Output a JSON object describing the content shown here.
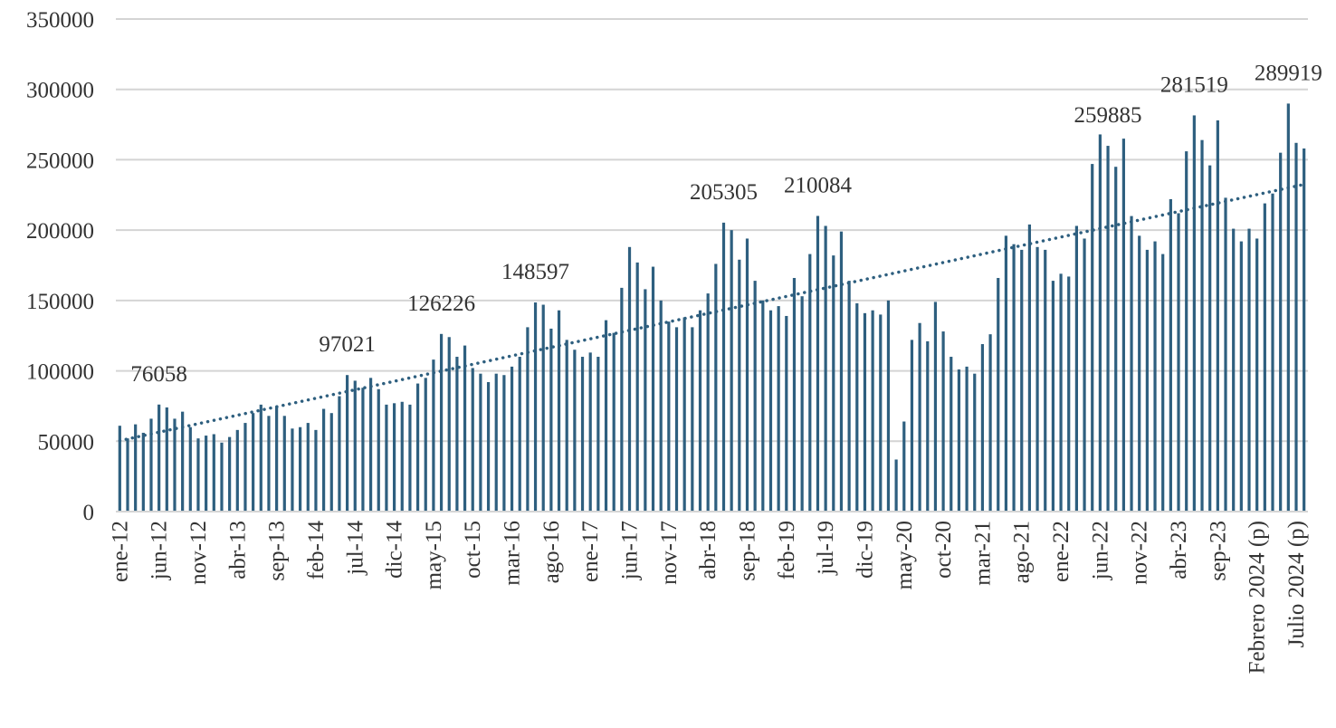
{
  "chart_data": {
    "type": "bar",
    "color": "#2e5f7f",
    "grid": true,
    "trendline": "linear",
    "ylim": [
      0,
      350000
    ],
    "yticks": [
      0,
      50000,
      100000,
      150000,
      200000,
      250000,
      300000,
      350000
    ],
    "categories": [
      "ene-12",
      null,
      null,
      null,
      null,
      "jun-12",
      null,
      null,
      null,
      null,
      "nov-12",
      null,
      null,
      null,
      null,
      "abr-13",
      null,
      null,
      null,
      null,
      "sep-13",
      null,
      null,
      null,
      null,
      "feb-14",
      null,
      null,
      null,
      null,
      "jul-14",
      null,
      null,
      null,
      null,
      "dic-14",
      null,
      null,
      null,
      null,
      "may-15",
      null,
      null,
      null,
      null,
      "oct-15",
      null,
      null,
      null,
      null,
      "mar-16",
      null,
      null,
      null,
      null,
      "ago-16",
      null,
      null,
      null,
      null,
      "ene-17",
      null,
      null,
      null,
      null,
      "jun-17",
      null,
      null,
      null,
      null,
      "nov-17",
      null,
      null,
      null,
      null,
      "abr-18",
      null,
      null,
      null,
      null,
      "sep-18",
      null,
      null,
      null,
      null,
      "feb-19",
      null,
      null,
      null,
      null,
      "jul-19",
      null,
      null,
      null,
      null,
      "dic-19",
      null,
      null,
      null,
      null,
      "may-20",
      null,
      null,
      null,
      null,
      "oct-20",
      null,
      null,
      null,
      null,
      "mar-21",
      null,
      null,
      null,
      null,
      "ago-21",
      null,
      null,
      null,
      null,
      "ene-22",
      null,
      null,
      null,
      null,
      "jun-22",
      null,
      null,
      null,
      null,
      "nov-22",
      null,
      null,
      null,
      null,
      "abr-23",
      null,
      null,
      null,
      null,
      "sep-23",
      null,
      null,
      null,
      null,
      "Febrero 2024 (p)",
      null,
      null,
      null,
      null,
      "Julio 2024 (p)",
      null
    ],
    "values": [
      61000,
      52000,
      62000,
      56000,
      66000,
      76058,
      74000,
      66000,
      71000,
      60000,
      52000,
      54000,
      55000,
      49000,
      53000,
      58000,
      63000,
      70000,
      76000,
      68000,
      75000,
      68000,
      59000,
      60000,
      63000,
      58000,
      73000,
      70000,
      82000,
      97021,
      93000,
      88000,
      95000,
      87000,
      76000,
      77000,
      78000,
      76000,
      91000,
      95000,
      108000,
      126226,
      124000,
      110000,
      118000,
      102000,
      98000,
      92000,
      98000,
      97000,
      103000,
      110000,
      131000,
      148597,
      147000,
      130000,
      143000,
      122000,
      115000,
      110000,
      113000,
      110000,
      136000,
      127000,
      159000,
      188000,
      177000,
      158000,
      174000,
      150000,
      135000,
      131000,
      138000,
      131000,
      143000,
      155000,
      176000,
      205305,
      200000,
      179000,
      194000,
      164000,
      150000,
      143000,
      146000,
      139000,
      166000,
      153000,
      183000,
      210084,
      203000,
      182000,
      199000,
      164000,
      148000,
      141000,
      143000,
      140000,
      150000,
      37000,
      64000,
      122000,
      134000,
      121000,
      149000,
      128000,
      110000,
      101000,
      103000,
      98000,
      119000,
      126000,
      166000,
      196000,
      190000,
      186000,
      204000,
      188000,
      186000,
      164000,
      169000,
      167000,
      203000,
      194000,
      247000,
      268000,
      259885,
      245000,
      265000,
      210000,
      196000,
      186000,
      192000,
      183000,
      222000,
      212000,
      256000,
      281519,
      264000,
      246000,
      278000,
      223000,
      201000,
      192000,
      201000,
      194000,
      219000,
      226000,
      255000,
      289919,
      262000,
      258000
    ],
    "value_labels": [
      null,
      null,
      null,
      null,
      null,
      "76058",
      null,
      null,
      null,
      null,
      null,
      null,
      null,
      null,
      null,
      null,
      null,
      null,
      null,
      null,
      null,
      null,
      null,
      null,
      null,
      null,
      null,
      null,
      null,
      "97021",
      null,
      null,
      null,
      null,
      null,
      null,
      null,
      null,
      null,
      null,
      null,
      "126226",
      null,
      null,
      null,
      null,
      null,
      null,
      null,
      null,
      null,
      null,
      null,
      "148597",
      null,
      null,
      null,
      null,
      null,
      null,
      null,
      null,
      null,
      null,
      null,
      null,
      null,
      null,
      null,
      null,
      null,
      null,
      null,
      null,
      null,
      null,
      null,
      "205305",
      null,
      null,
      null,
      null,
      null,
      null,
      null,
      null,
      null,
      null,
      null,
      "210084",
      null,
      null,
      null,
      null,
      null,
      null,
      null,
      null,
      null,
      null,
      null,
      null,
      null,
      null,
      null,
      null,
      null,
      null,
      null,
      null,
      null,
      null,
      null,
      null,
      null,
      null,
      null,
      null,
      null,
      null,
      null,
      null,
      null,
      null,
      null,
      null,
      "259885",
      null,
      null,
      null,
      null,
      null,
      null,
      null,
      null,
      null,
      null,
      "281519",
      null,
      null,
      null,
      null,
      null,
      null,
      null,
      null,
      null,
      null,
      null,
      "289919",
      null,
      null
    ]
  }
}
